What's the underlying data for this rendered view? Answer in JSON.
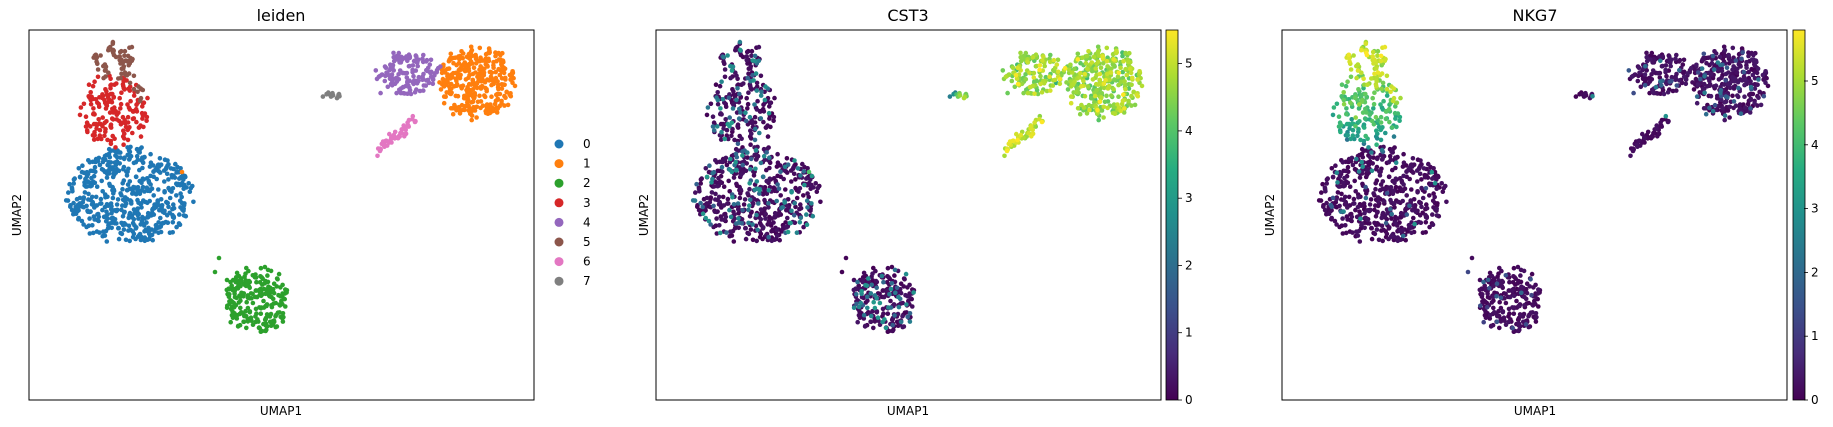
{
  "chart_data": [
    {
      "type": "scatter",
      "title": "leiden",
      "xlabel": "UMAP1",
      "ylabel": "UMAP2",
      "legend_placement": "right",
      "legend": [
        {
          "label": "0",
          "color": "#1f77b4"
        },
        {
          "label": "1",
          "color": "#ff7f0e"
        },
        {
          "label": "2",
          "color": "#2ca02c"
        },
        {
          "label": "3",
          "color": "#d62728"
        },
        {
          "label": "4",
          "color": "#9467bd"
        },
        {
          "label": "5",
          "color": "#8c564b"
        },
        {
          "label": "6",
          "color": "#e377c2"
        },
        {
          "label": "7",
          "color": "#7f7f7f"
        }
      ]
    },
    {
      "type": "scatter",
      "title": "CST3",
      "xlabel": "UMAP1",
      "ylabel": "UMAP2",
      "colormap": "viridis",
      "colorbar": {
        "ticks": [
          "0",
          "1",
          "2",
          "3",
          "4",
          "5"
        ],
        "min": 0,
        "max": 5.5
      }
    },
    {
      "type": "scatter",
      "title": "NKG7",
      "xlabel": "UMAP1",
      "ylabel": "UMAP2",
      "colormap": "viridis",
      "colorbar": {
        "ticks": [
          "0",
          "1",
          "2",
          "3",
          "4",
          "5"
        ],
        "min": 0,
        "max": 5.8
      }
    }
  ]
}
